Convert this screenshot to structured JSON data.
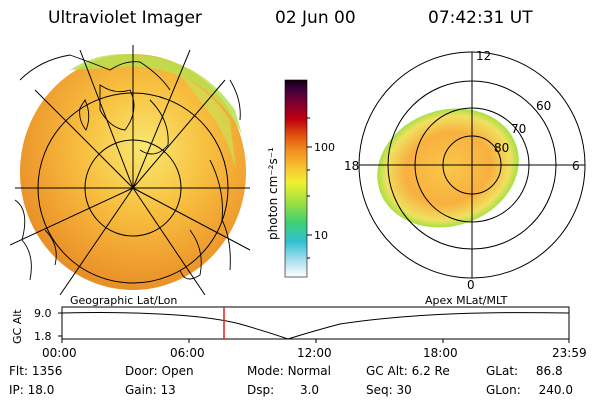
{
  "header": {
    "instrument": "Ultraviolet Imager",
    "date": "02 Jun 00",
    "time": "07:42:31 UT"
  },
  "colorbar": {
    "label": "photon cm⁻²s⁻¹",
    "ticks": [
      "100",
      "10"
    ],
    "stops": [
      "#ffffff",
      "#b0e0f0",
      "#30c0d0",
      "#40d070",
      "#a0e040",
      "#f0f030",
      "#f8c030",
      "#f09020",
      "#e05010",
      "#c00010",
      "#800030",
      "#400040",
      "#100010"
    ]
  },
  "geo_map": {
    "caption": "Geographic Lat/Lon"
  },
  "polar_plot": {
    "caption": "Apex MLat/MLT",
    "mlt_labels": [
      "12",
      "18",
      "6",
      "0"
    ],
    "lat_labels": [
      "60",
      "70",
      "80"
    ]
  },
  "orbit": {
    "ylabel": "GC Alt",
    "yticks": [
      "9.0",
      "1.8"
    ],
    "xticks": [
      "00:00",
      "06:00",
      "12:00",
      "18:00",
      "23:59"
    ],
    "marker_time": "07:42"
  },
  "status": {
    "flt_label": "Flt:",
    "flt_value": "1356",
    "door_label": "Door:",
    "door_value": "Open",
    "mode_label": "Mode:",
    "mode_value": "Normal",
    "gcalt_label": "GC Alt:",
    "gcalt_value": "6.2 Re",
    "glat_label": "GLat:",
    "glat_value": "86.8",
    "ip_label": "IP:",
    "ip_value": "18.0",
    "gain_label": "Gain:",
    "gain_value": "13",
    "dsp_label": "Dsp:",
    "dsp_value": "3.0",
    "seq_label": "Seq:",
    "seq_value": "30",
    "glon_label": "GLon:",
    "glon_value": "240.0"
  }
}
